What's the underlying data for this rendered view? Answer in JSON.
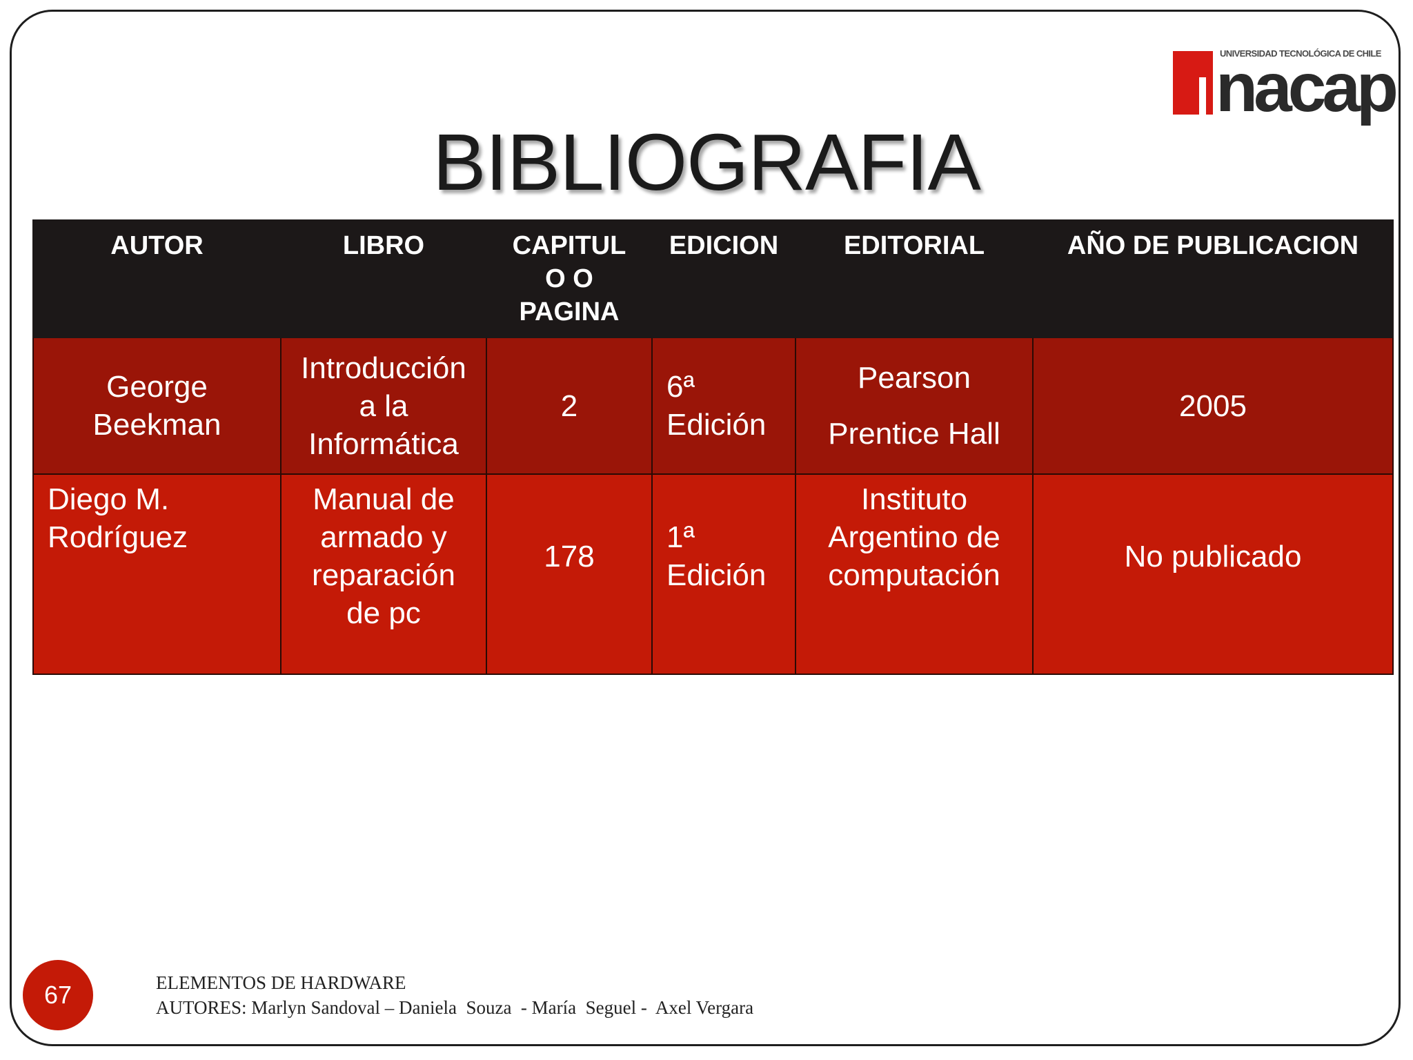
{
  "logo": {
    "tagline": "UNIVERSIDAD TECNOLÓGICA DE CHILE",
    "wordmark": "nacap"
  },
  "title": "BIBLIOGRAFIA",
  "table": {
    "headers": [
      "AUTOR",
      "LIBRO",
      "CAPITUL O O PAGINA",
      "EDICION",
      "EDITORIAL",
      "AÑO DE PUBLICACION"
    ],
    "rows": [
      {
        "autor": "George Beekman",
        "libro": "Introducción a la Informática",
        "capitulo": "2",
        "edicion": "6ª Edición",
        "editorial_line1": "Pearson",
        "editorial_line2": "Prentice Hall",
        "anio": "2005"
      },
      {
        "autor": "Diego M. Rodríguez",
        "libro": "Manual de armado y reparación de pc",
        "capitulo": "178",
        "edicion": "1ª Edición",
        "editorial": "Instituto Argentino de computación",
        "anio": "No publicado"
      }
    ]
  },
  "colors": {
    "header_bg": "#1c1818",
    "row1_bg": "#9a1508",
    "row2_bg": "#c41a07",
    "brand_red": "#d71a14"
  },
  "footer": {
    "page_number": "67",
    "line1": "ELEMENTOS DE HARDWARE",
    "line2": "AUTORES: Marlyn Sandoval – Daniela  Souza  - María  Seguel -  Axel Vergara"
  }
}
